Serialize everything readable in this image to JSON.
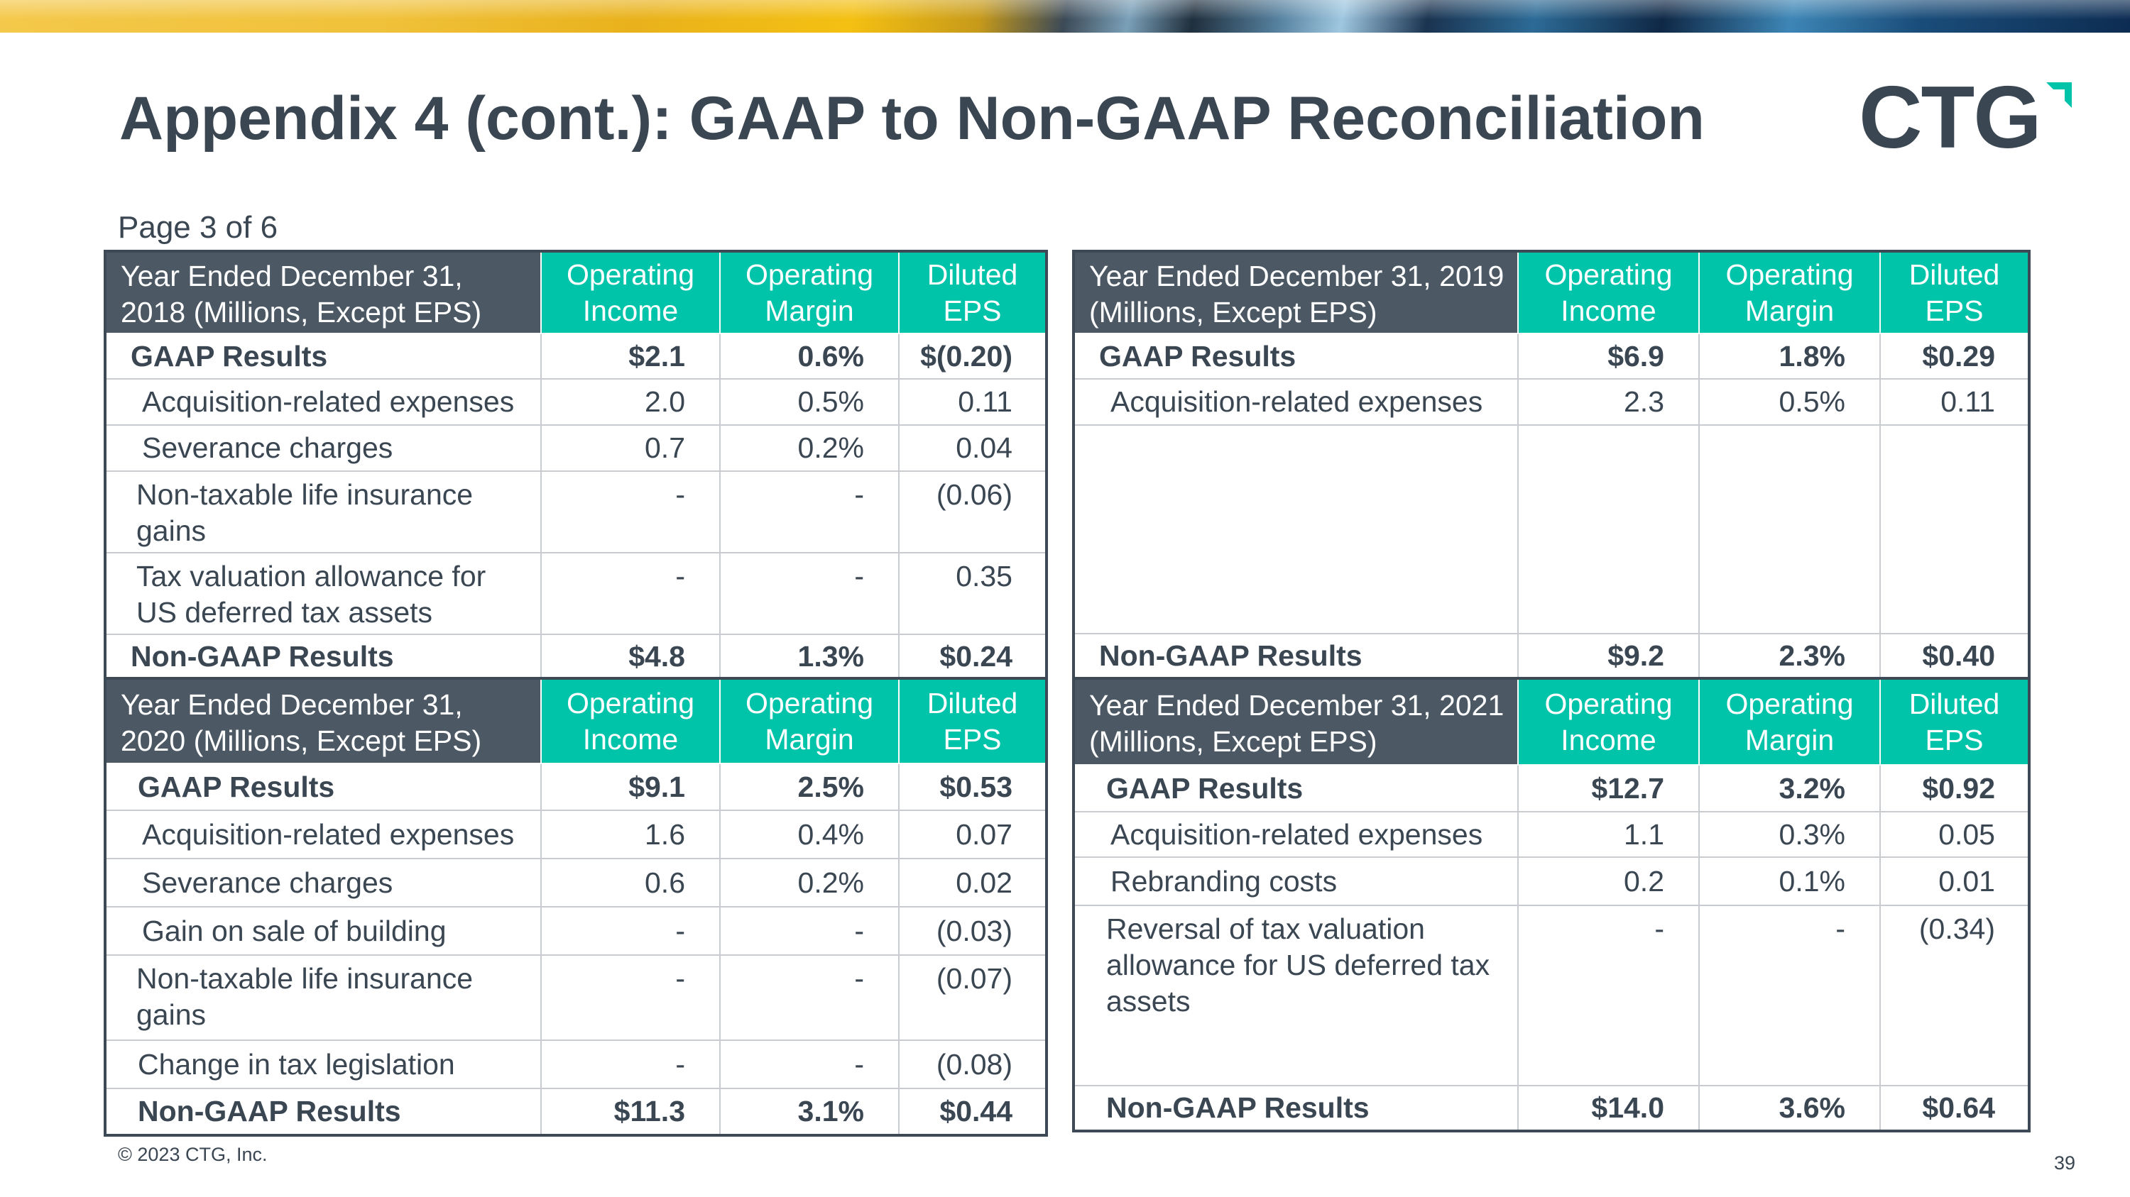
{
  "title": "Appendix 4 (cont.): GAAP to Non-GAAP Reconciliation",
  "logo": {
    "text": "CTG",
    "accent_color": "#00c4aa"
  },
  "page_info": "Page 3 of 6",
  "colors": {
    "header_teal": "#00c4aa",
    "header_slate": "#4c5965",
    "text": "#3a4652"
  },
  "tables": {
    "t2018": {
      "header": {
        "year": "Year Ended December 31, 2018 (Millions, Except EPS)",
        "col1": "Operating Income",
        "col2": "Operating Margin",
        "col3": "Diluted EPS"
      },
      "rows": [
        {
          "label": "GAAP Results",
          "oi": "$2.1",
          "om": "0.6%",
          "eps": "$(0.20)"
        },
        {
          "label": "Acquisition-related expenses",
          "oi": "2.0",
          "om": "0.5%",
          "eps": "0.11"
        },
        {
          "label": "Severance charges",
          "oi": "0.7",
          "om": "0.2%",
          "eps": "0.04"
        },
        {
          "label": "Non-taxable life insurance gains",
          "oi": "-",
          "om": "-",
          "eps": "(0.06)"
        },
        {
          "label": "Tax valuation allowance for US deferred tax assets",
          "oi": "-",
          "om": "-",
          "eps": "0.35"
        },
        {
          "label": "Non-GAAP Results",
          "oi": "$4.8",
          "om": "1.3%",
          "eps": "$0.24"
        }
      ]
    },
    "t2019": {
      "header": {
        "year": "Year Ended December 31, 2019 (Millions, Except EPS)",
        "col1": "Operating Income",
        "col2": "Operating Margin",
        "col3": "Diluted EPS"
      },
      "rows": [
        {
          "label": "GAAP Results",
          "oi": "$6.9",
          "om": "1.8%",
          "eps": "$0.29"
        },
        {
          "label": "Acquisition-related expenses",
          "oi": "2.3",
          "om": "0.5%",
          "eps": "0.11"
        },
        {
          "label": "Non-GAAP Results",
          "oi": "$9.2",
          "om": "2.3%",
          "eps": "$0.40"
        }
      ]
    },
    "t2020": {
      "header": {
        "year": "Year Ended December 31, 2020 (Millions, Except EPS)",
        "col1": "Operating Income",
        "col2": "Operating Margin",
        "col3": "Diluted EPS"
      },
      "rows": [
        {
          "label": "GAAP Results",
          "oi": "$9.1",
          "om": "2.5%",
          "eps": "$0.53"
        },
        {
          "label": "Acquisition-related expenses",
          "oi": "1.6",
          "om": "0.4%",
          "eps": "0.07"
        },
        {
          "label": "Severance charges",
          "oi": "0.6",
          "om": "0.2%",
          "eps": "0.02"
        },
        {
          "label": "Gain on sale of building",
          "oi": "-",
          "om": "-",
          "eps": "(0.03)"
        },
        {
          "label": "Non-taxable life insurance gains",
          "oi": "-",
          "om": "-",
          "eps": "(0.07)"
        },
        {
          "label": "Change in tax legislation",
          "oi": "-",
          "om": "-",
          "eps": "(0.08)"
        },
        {
          "label": "Non-GAAP Results",
          "oi": "$11.3",
          "om": "3.1%",
          "eps": "$0.44"
        }
      ]
    },
    "t2021": {
      "header": {
        "year": "Year Ended December 31, 2021 (Millions, Except EPS)",
        "col1": "Operating Income",
        "col2": "Operating Margin",
        "col3": "Diluted EPS"
      },
      "rows": [
        {
          "label": "GAAP Results",
          "oi": "$12.7",
          "om": "3.2%",
          "eps": "$0.92"
        },
        {
          "label": "Acquisition-related expenses",
          "oi": "1.1",
          "om": "0.3%",
          "eps": "0.05"
        },
        {
          "label": "Rebranding costs",
          "oi": "0.2",
          "om": "0.1%",
          "eps": "0.01"
        },
        {
          "label": "Reversal of tax valuation allowance for US deferred  tax assets",
          "oi": "-",
          "om": "-",
          "eps": "(0.34)"
        },
        {
          "label": "Non-GAAP Results",
          "oi": "$14.0",
          "om": "3.6%",
          "eps": "$0.64"
        }
      ]
    }
  },
  "footer": "© 2023 CTG, Inc.",
  "page_number": "39"
}
